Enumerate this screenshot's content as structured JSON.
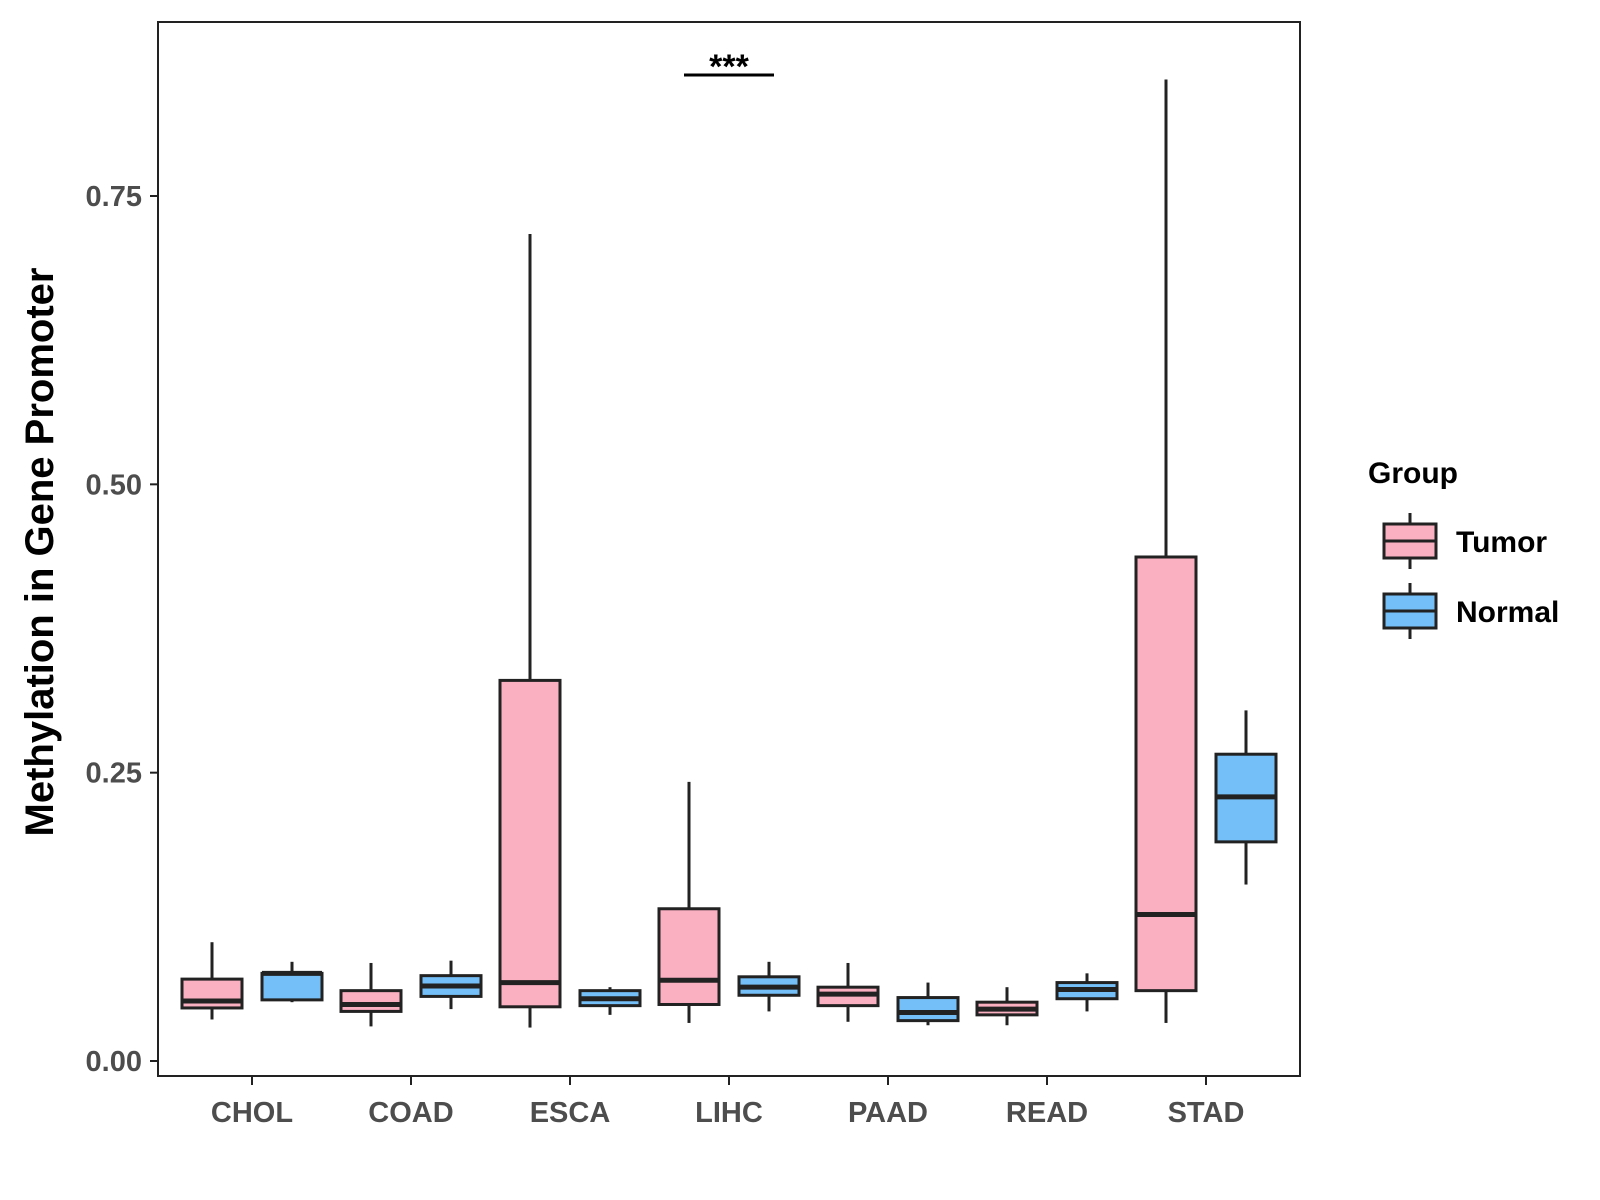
{
  "chart_data": {
    "type": "boxplot",
    "title": "",
    "xlabel": "",
    "ylabel": "Methylation in Gene Promoter",
    "ylim": [
      -0.015,
      0.9
    ],
    "yticks": [
      0.0,
      0.25,
      0.5,
      0.75
    ],
    "ytick_labels": [
      "0.00",
      "0.25",
      "0.50",
      "0.75"
    ],
    "categories": [
      "CHOL",
      "COAD",
      "ESCA",
      "LIHC",
      "PAAD",
      "READ",
      "STAD"
    ],
    "legend": {
      "title": "Group",
      "position": "right",
      "entries": [
        {
          "name": "Tumor",
          "color": "#fbb0c2"
        },
        {
          "name": "Normal",
          "color": "#74bff7"
        }
      ]
    },
    "series": [
      {
        "name": "Tumor",
        "color": "#fbb0c2",
        "boxes": [
          {
            "category": "CHOL",
            "min": 0.036,
            "q1": 0.046,
            "median": 0.052,
            "q3": 0.071,
            "max": 0.103
          },
          {
            "category": "COAD",
            "min": 0.03,
            "q1": 0.043,
            "median": 0.049,
            "q3": 0.061,
            "max": 0.085
          },
          {
            "category": "ESCA",
            "min": 0.029,
            "q1": 0.047,
            "median": 0.068,
            "q3": 0.33,
            "max": 0.717
          },
          {
            "category": "LIHC",
            "min": 0.033,
            "q1": 0.049,
            "median": 0.07,
            "q3": 0.132,
            "max": 0.242
          },
          {
            "category": "PAAD",
            "min": 0.034,
            "q1": 0.048,
            "median": 0.058,
            "q3": 0.064,
            "max": 0.085
          },
          {
            "category": "READ",
            "min": 0.031,
            "q1": 0.04,
            "median": 0.045,
            "q3": 0.051,
            "max": 0.064
          },
          {
            "category": "STAD",
            "min": 0.033,
            "q1": 0.061,
            "median": 0.127,
            "q3": 0.437,
            "max": 0.851
          }
        ]
      },
      {
        "name": "Normal",
        "color": "#74bff7",
        "boxes": [
          {
            "category": "CHOL",
            "min": 0.051,
            "q1": 0.053,
            "median": 0.076,
            "q3": 0.076,
            "max": 0.086
          },
          {
            "category": "COAD",
            "min": 0.045,
            "q1": 0.056,
            "median": 0.065,
            "q3": 0.074,
            "max": 0.087
          },
          {
            "category": "ESCA",
            "min": 0.04,
            "q1": 0.048,
            "median": 0.054,
            "q3": 0.061,
            "max": 0.064
          },
          {
            "category": "LIHC",
            "min": 0.043,
            "q1": 0.057,
            "median": 0.064,
            "q3": 0.073,
            "max": 0.086
          },
          {
            "category": "PAAD",
            "min": 0.031,
            "q1": 0.035,
            "median": 0.042,
            "q3": 0.055,
            "max": 0.068
          },
          {
            "category": "READ",
            "min": 0.043,
            "q1": 0.054,
            "median": 0.062,
            "q3": 0.068,
            "max": 0.076
          },
          {
            "category": "STAD",
            "min": 0.153,
            "q1": 0.19,
            "median": 0.229,
            "q3": 0.266,
            "max": 0.304
          }
        ]
      }
    ],
    "annotations": [
      {
        "category": "LIHC",
        "text": "***"
      }
    ]
  }
}
